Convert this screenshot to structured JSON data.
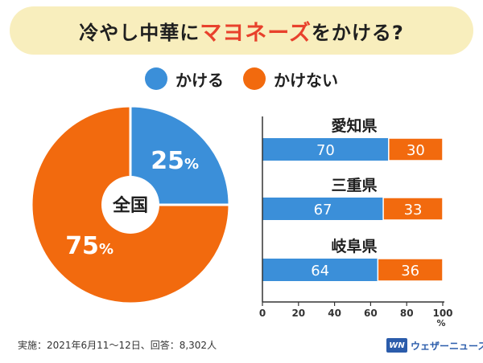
{
  "title": {
    "prefix": "冷やし中華に",
    "highlight": "マヨネーズ",
    "suffix": "をかける?"
  },
  "colors": {
    "yes": "#3b8fd9",
    "no": "#f26a0e",
    "accent": "#e8412c",
    "banner": "#f8eebd"
  },
  "legend": [
    {
      "label": "かける",
      "color": "#3b8fd9"
    },
    {
      "label": "かけない",
      "color": "#f26a0e"
    }
  ],
  "chart_data": [
    {
      "type": "pie",
      "center_label": "全国",
      "slices": [
        {
          "name": "かける",
          "value": 25,
          "label": "25"
        },
        {
          "name": "かけない",
          "value": 75,
          "label": "75"
        }
      ],
      "unit": "%"
    },
    {
      "type": "bar",
      "orientation": "horizontal",
      "stacked": true,
      "categories": [
        "愛知県",
        "三重県",
        "岐阜県"
      ],
      "series": [
        {
          "name": "かける",
          "values": [
            70,
            67,
            64
          ]
        },
        {
          "name": "かけない",
          "values": [
            30,
            33,
            36
          ]
        }
      ],
      "xlim": [
        0,
        100
      ],
      "xticks": [
        "0",
        "20",
        "40",
        "60",
        "80",
        "100"
      ],
      "xunit": "%"
    }
  ],
  "footnote": "実施：2021年6月11～12日、回答：8,302人",
  "brand": {
    "logo": "WN",
    "name": "ウェザーニュース"
  }
}
